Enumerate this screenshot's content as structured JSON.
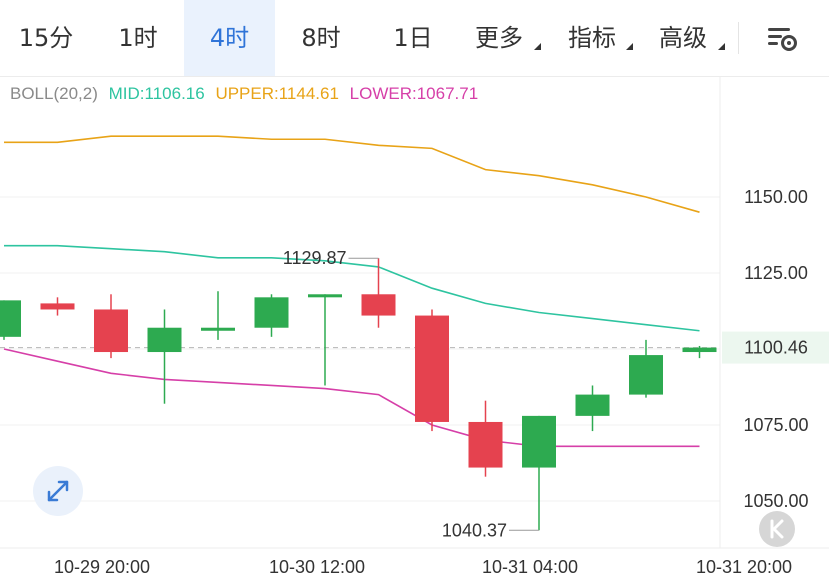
{
  "tabs": [
    {
      "label": "15分",
      "active": false,
      "dropdown": false
    },
    {
      "label": "1时",
      "active": false,
      "dropdown": false
    },
    {
      "label": "4时",
      "active": true,
      "dropdown": false
    },
    {
      "label": "8时",
      "active": false,
      "dropdown": false
    },
    {
      "label": "1日",
      "active": false,
      "dropdown": false
    },
    {
      "label": "更多",
      "active": false,
      "dropdown": true
    },
    {
      "label": "指标",
      "active": false,
      "dropdown": true
    },
    {
      "label": "高级",
      "active": false,
      "dropdown": true
    }
  ],
  "settings_icon": "chart-settings-icon",
  "legend": {
    "name": "BOLL(20,2)",
    "mid": "MID:1106.16",
    "upper": "UPPER:1144.61",
    "lower": "LOWER:1067.71"
  },
  "colors": {
    "up": "#2daa50",
    "down": "#e5424f",
    "mid": "#2ec4a0",
    "upper": "#e8a317",
    "lower": "#d63fa8",
    "accent": "#2f74d8",
    "legend_name": "#8a8a8a"
  },
  "expand_icon": "expand-arrows-icon",
  "k_icon": "k-icon",
  "chart_data": {
    "type": "candlestick",
    "interval": "4时",
    "y_ticks": [
      1150.0,
      1125.0,
      1100.0,
      1075.0,
      1050.0
    ],
    "y_tick_labels": [
      "1150.00",
      "1125.00",
      "1075.00",
      "1050.00"
    ],
    "current_price": 1100.46,
    "current_price_label": "1100.46",
    "x_labels": [
      "10-29 20:00",
      "10-30 12:00",
      "10-31 04:00",
      "10-31 20:00"
    ],
    "candles": [
      {
        "open": 1104,
        "high": 1116,
        "low": 1103,
        "close": 1116
      },
      {
        "open": 1115,
        "high": 1117,
        "low": 1111,
        "close": 1113
      },
      {
        "open": 1113,
        "high": 1118,
        "low": 1097,
        "close": 1099
      },
      {
        "open": 1099,
        "high": 1113,
        "low": 1082,
        "close": 1107
      },
      {
        "open": 1106,
        "high": 1119,
        "low": 1103,
        "close": 1107
      },
      {
        "open": 1107,
        "high": 1118,
        "low": 1104,
        "close": 1117
      },
      {
        "open": 1117,
        "high": 1118,
        "low": 1088,
        "close": 1118
      },
      {
        "open": 1118,
        "high": 1129.87,
        "low": 1107,
        "close": 1111
      },
      {
        "open": 1111,
        "high": 1113,
        "low": 1073,
        "close": 1076
      },
      {
        "open": 1076,
        "high": 1083,
        "low": 1058,
        "close": 1061
      },
      {
        "open": 1061,
        "high": 1078,
        "low": 1040.37,
        "close": 1078
      },
      {
        "open": 1078,
        "high": 1088,
        "low": 1073,
        "close": 1085
      },
      {
        "open": 1085,
        "high": 1103,
        "low": 1084,
        "close": 1098
      },
      {
        "open": 1099,
        "high": 1101,
        "low": 1097,
        "close": 1100.46
      }
    ],
    "annotations": {
      "high_label": "1129.87",
      "low_label": "1040.37"
    },
    "boll_upper": [
      1168,
      1168,
      1170,
      1170,
      1170,
      1169,
      1169,
      1167,
      1166,
      1159,
      1157,
      1154,
      1150,
      1145
    ],
    "boll_mid": [
      1134,
      1134,
      1133,
      1132,
      1130,
      1130,
      1129,
      1127,
      1120,
      1115,
      1112,
      1110,
      1108,
      1106
    ],
    "boll_lower": [
      1100,
      1096,
      1092,
      1090,
      1089,
      1088,
      1087,
      1085,
      1075,
      1070,
      1068,
      1068,
      1068,
      1068
    ]
  }
}
